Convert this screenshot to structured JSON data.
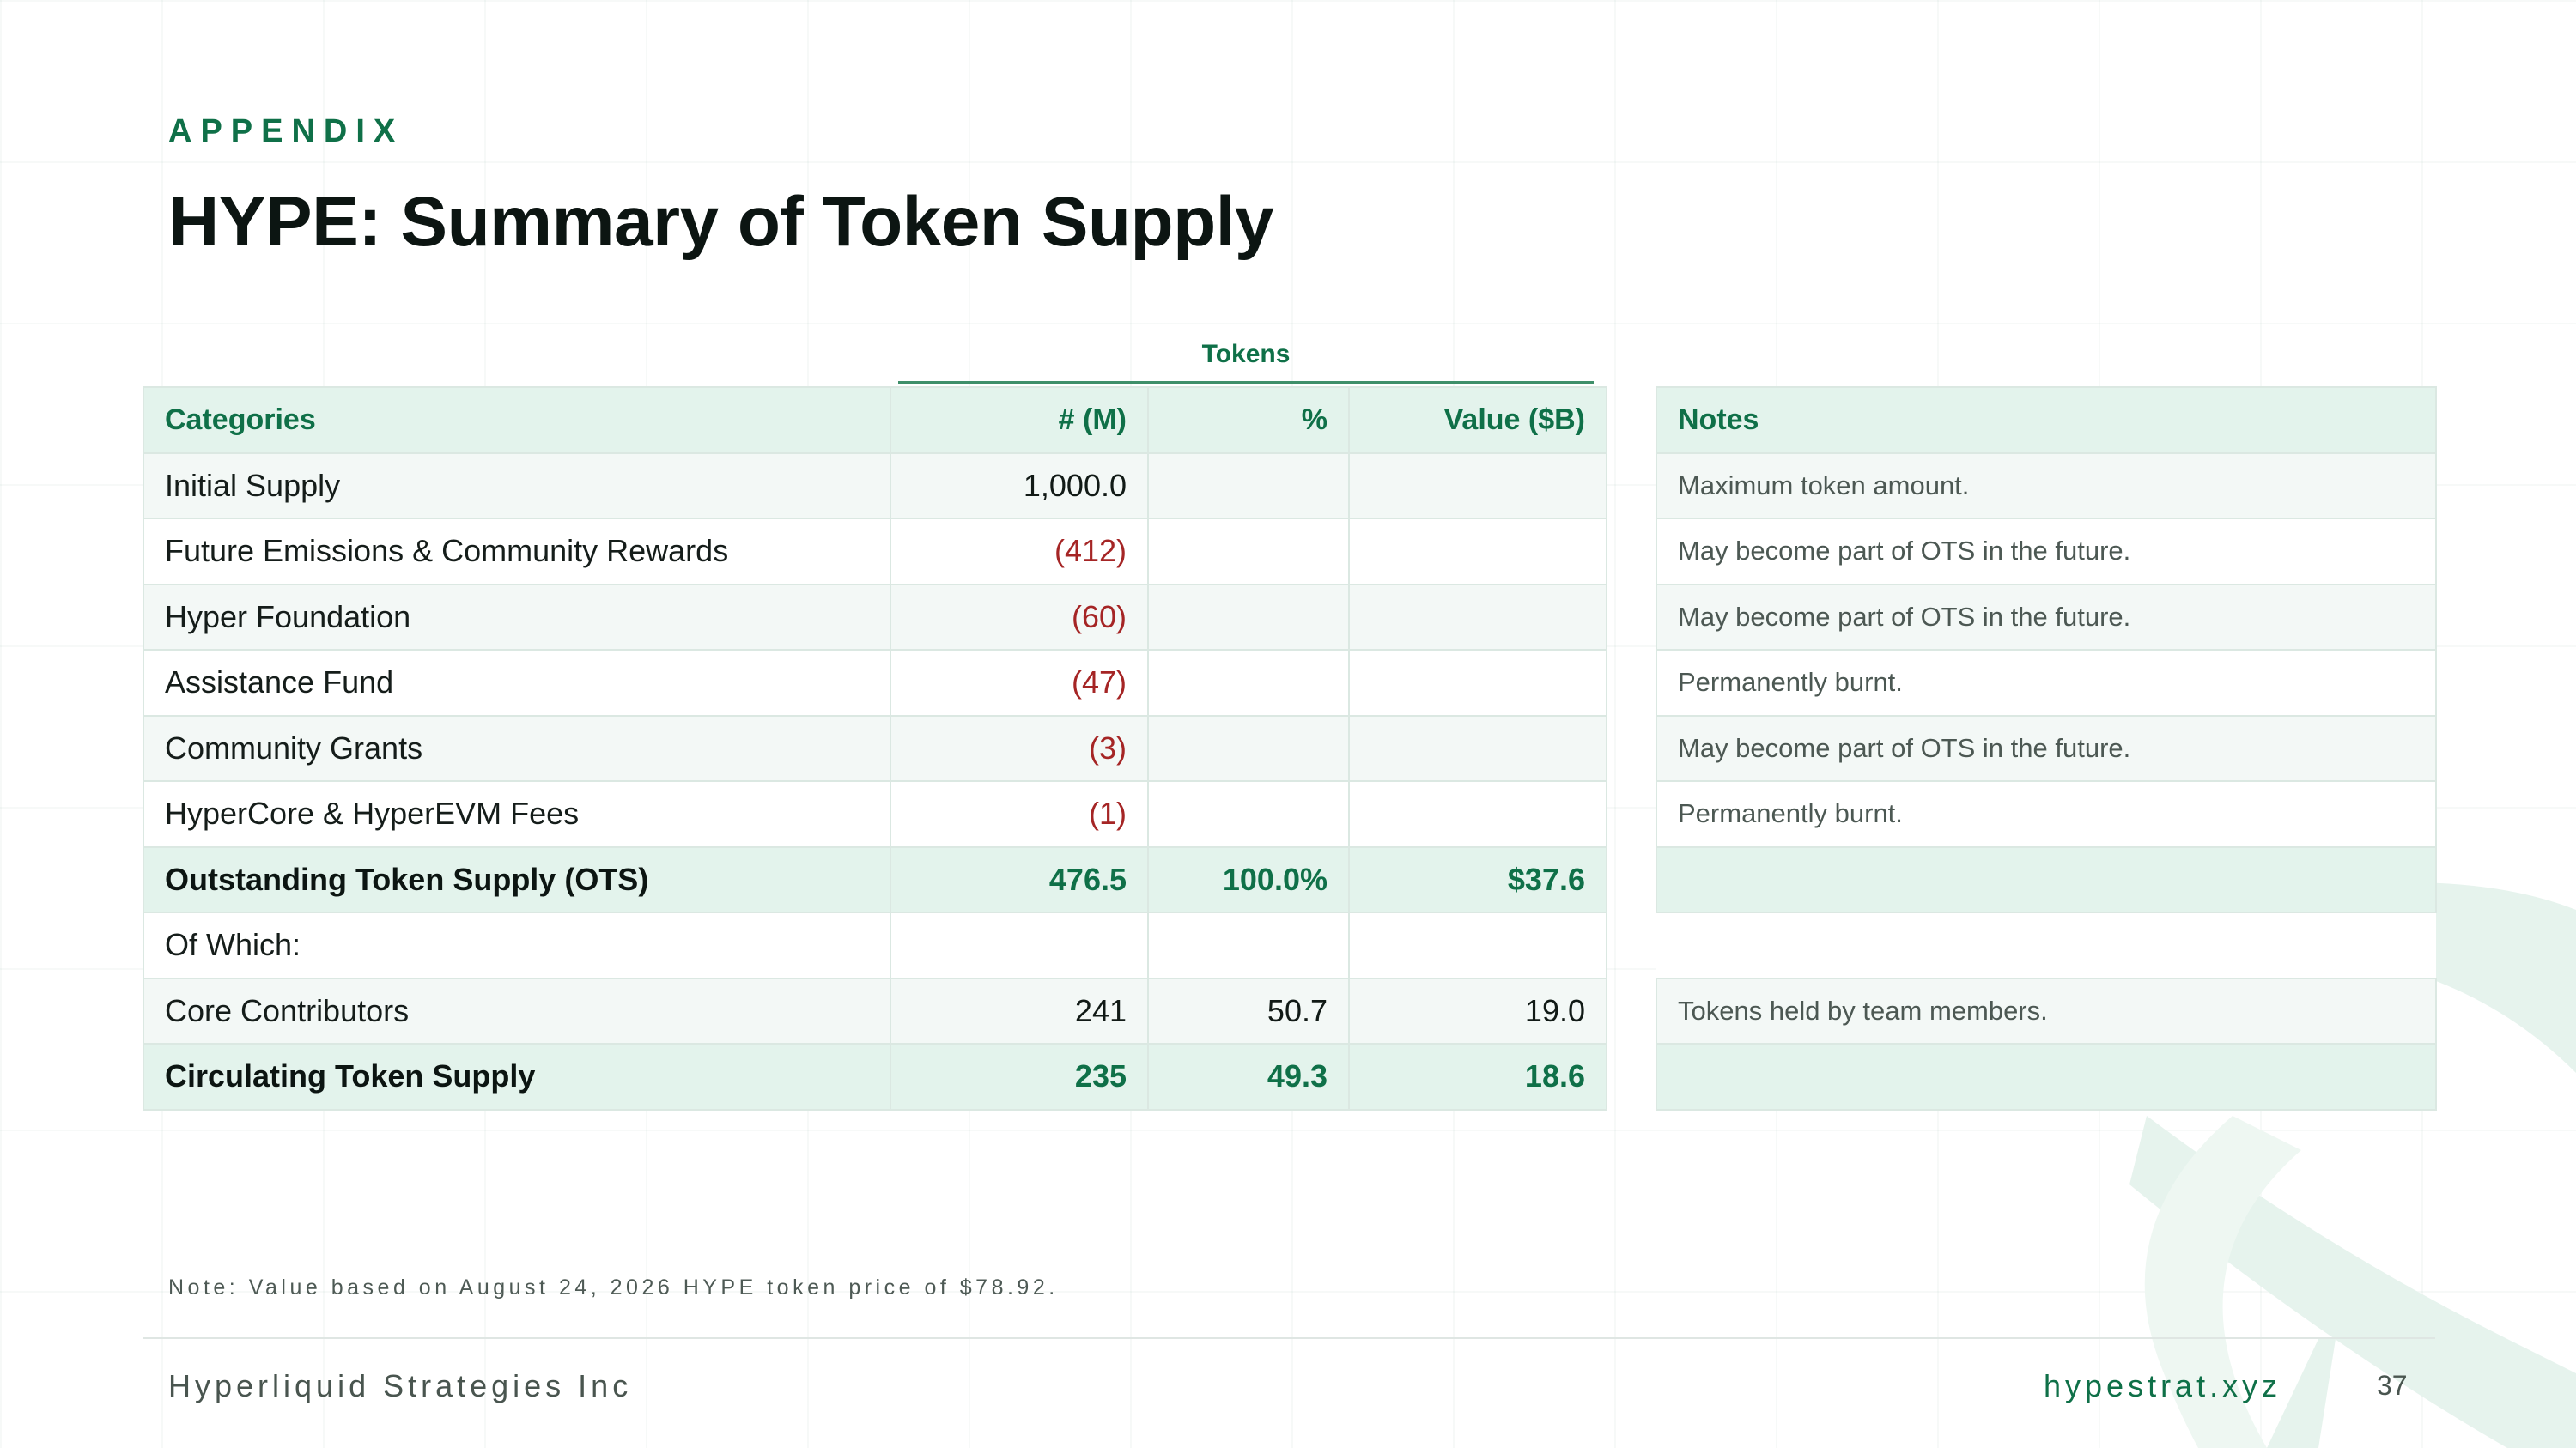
{
  "slide": {
    "eyebrow": "APPENDIX",
    "title": "HYPE: Summary of Token Supply"
  },
  "table": {
    "group_label": "Tokens",
    "headers": {
      "category": "Categories",
      "count": "# (M)",
      "percent": "%",
      "value": "Value ($B)"
    },
    "rows": [
      {
        "category": "Initial Supply",
        "count": "1,000.0",
        "percent": "",
        "value": ""
      },
      {
        "category": "Future Emissions & Community Rewards",
        "count": "(412)",
        "percent": "",
        "value": ""
      },
      {
        "category": "Hyper Foundation",
        "count": "(60)",
        "percent": "",
        "value": ""
      },
      {
        "category": "Assistance Fund",
        "count": "(47)",
        "percent": "",
        "value": ""
      },
      {
        "category": "Community Grants",
        "count": "(3)",
        "percent": "",
        "value": ""
      },
      {
        "category": "HyperCore & HyperEVM Fees",
        "count": "(1)",
        "percent": "",
        "value": ""
      },
      {
        "category": "Outstanding Token Supply (OTS)",
        "count": "476.5",
        "percent": "100.0%",
        "value": "$37.6"
      },
      {
        "category": "Of Which:",
        "count": "",
        "percent": "",
        "value": ""
      },
      {
        "category": "Core Contributors",
        "count": "241",
        "percent": "50.7",
        "value": "19.0"
      },
      {
        "category": "Circulating Token Supply",
        "count": "235",
        "percent": "49.3",
        "value": "18.6"
      }
    ]
  },
  "notes": {
    "header": "Notes",
    "rows": [
      "Maximum token amount.",
      "May become part of OTS in the future.",
      "May become part of OTS in the future.",
      "Permanently burnt.",
      "May become part of OTS in the future.",
      "Permanently burnt.",
      "",
      "",
      "Tokens held by team members.",
      ""
    ]
  },
  "footnote": "Note: Value based on August 24, 2026 HYPE token price of $78.92.",
  "footer": {
    "company": "Hyperliquid Strategies Inc",
    "website": "hypestrat.xyz",
    "page_number": "37"
  },
  "colors": {
    "accent_green": "#0f7048",
    "negative_red": "#a52525",
    "header_fill": "#e3f3ec",
    "stripe_fill": "#f3f8f6"
  }
}
